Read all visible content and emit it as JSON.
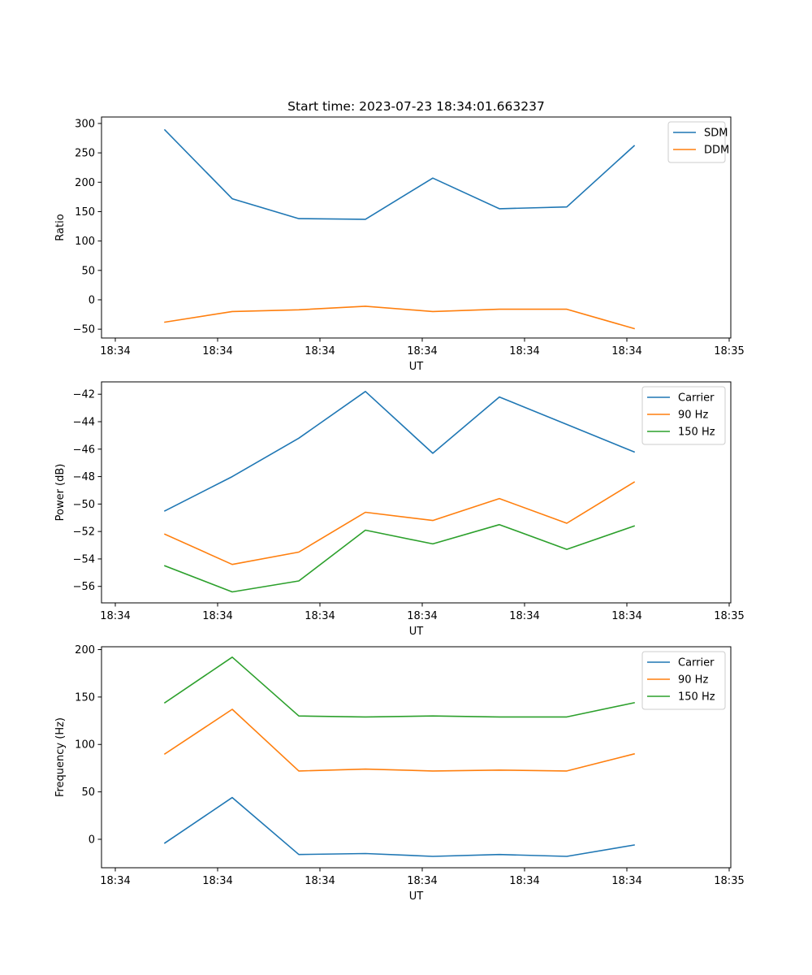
{
  "chart_data": [
    {
      "type": "line",
      "title": "Start time: 2023-07-23 18:34:01.663237",
      "xlabel": "UT",
      "ylabel": "Ratio",
      "x_tick_labels": [
        "18:34",
        "18:34",
        "18:34",
        "18:34",
        "18:34",
        "18:34",
        "18:35"
      ],
      "y_ticks": [
        -50,
        0,
        50,
        100,
        150,
        200,
        250,
        300
      ],
      "ylim": [
        -65,
        311
      ],
      "legend": "top-right",
      "series": [
        {
          "name": "SDM",
          "color": "#1f77b4",
          "values": [
            289,
            172,
            138,
            137,
            207,
            155,
            158,
            262
          ]
        },
        {
          "name": "DDM",
          "color": "#ff7f0e",
          "values": [
            -38,
            -20,
            -17,
            -11,
            -20,
            -16,
            -16,
            -49
          ]
        }
      ]
    },
    {
      "type": "line",
      "title": "",
      "xlabel": "UT",
      "ylabel": "Power (dB)",
      "x_tick_labels": [
        "18:34",
        "18:34",
        "18:34",
        "18:34",
        "18:34",
        "18:34",
        "18:35"
      ],
      "y_ticks": [
        -56,
        -54,
        -52,
        -50,
        -48,
        -46,
        -44,
        -42
      ],
      "ylim": [
        -57.2,
        -41.1
      ],
      "legend": "top-right",
      "series": [
        {
          "name": "Carrier",
          "color": "#1f77b4",
          "values": [
            -50.5,
            -48.0,
            -45.2,
            -41.8,
            -46.3,
            -42.2,
            -44.2,
            -46.2
          ]
        },
        {
          "name": "90 Hz",
          "color": "#ff7f0e",
          "values": [
            -52.2,
            -54.4,
            -53.5,
            -50.6,
            -51.2,
            -49.6,
            -51.4,
            -48.4
          ]
        },
        {
          "name": "150 Hz",
          "color": "#2ca02c",
          "values": [
            -54.5,
            -56.4,
            -55.6,
            -51.9,
            -52.9,
            -51.5,
            -53.3,
            -51.6
          ]
        }
      ]
    },
    {
      "type": "line",
      "title": "",
      "xlabel": "UT",
      "ylabel": "Frequency (Hz)",
      "x_tick_labels": [
        "18:34",
        "18:34",
        "18:34",
        "18:34",
        "18:34",
        "18:34",
        "18:35"
      ],
      "y_ticks": [
        0,
        50,
        100,
        150,
        200
      ],
      "ylim": [
        -30,
        203
      ],
      "legend": "top-right",
      "series": [
        {
          "name": "Carrier",
          "color": "#1f77b4",
          "values": [
            -4,
            44,
            -16,
            -15,
            -18,
            -16,
            -18,
            -6
          ]
        },
        {
          "name": "90 Hz",
          "color": "#ff7f0e",
          "values": [
            90,
            137,
            72,
            74,
            72,
            73,
            72,
            90
          ]
        },
        {
          "name": "150 Hz",
          "color": "#2ca02c",
          "values": [
            144,
            192,
            130,
            129,
            130,
            129,
            129,
            144
          ]
        }
      ]
    }
  ]
}
